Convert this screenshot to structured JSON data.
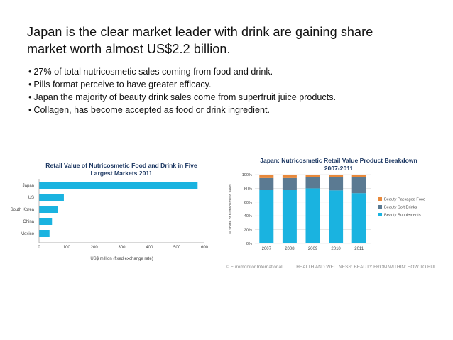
{
  "slide": {
    "title_line1": "Japan is the clear market leader with drink are gaining share",
    "title_line2": "market worth almost US$2.2 billion.",
    "bullets": [
      "27% of total nutricosmetic sales coming from food and drink.",
      "Pills format perceive to have greater efficacy.",
      "Japan the majority of beauty drink sales come from superfruit juice products.",
      "Collagen, has become accepted as food or drink ingredient."
    ]
  },
  "footer": {
    "left": "© Euromonitor International",
    "right": "HEALTH AND WELLNESS: BEAUTY FROM WITHIN: HOW TO BUI"
  },
  "colors": {
    "bar": "#1ab3e0",
    "supplements": "#1ab3e0",
    "soft_drinks": "#5b7a92",
    "packaged_food": "#e8893b",
    "title_text": "#1f3a64"
  },
  "chart_data": [
    {
      "type": "bar",
      "orientation": "horizontal",
      "title": "Retail Value of Nutricosmetic Food and Drink in Five Largest Markets 2011",
      "title_lines": [
        "Retail Value of Nutricosmetic Food and Drink in Five",
        "Largest Markets 2011"
      ],
      "categories": [
        "Japan",
        "US",
        "South Korea",
        "China",
        "Mexico"
      ],
      "values": [
        575,
        90,
        67,
        47,
        38
      ],
      "xlabel": "US$ million (fixed exchange rate)",
      "xlim": [
        0,
        600
      ],
      "xticks": [
        0,
        100,
        200,
        300,
        400,
        500,
        600
      ],
      "grid": false
    },
    {
      "type": "bar",
      "stacked": true,
      "title": "Japan: Nutricosmetic Retail Value Product Breakdown 2007-2011",
      "title_lines": [
        "Japan: Nutricosmetic Retail Value Product Breakdown",
        "2007-2011"
      ],
      "categories": [
        "2007",
        "2008",
        "2009",
        "2010",
        "2011"
      ],
      "ylabel": "% share of nutricosmetic sales",
      "ylim": [
        0,
        100
      ],
      "yticks": [
        "0%",
        "20%",
        "40%",
        "60%",
        "80%",
        "100%"
      ],
      "series": [
        {
          "name": "Beauty Supplements",
          "values": [
            78,
            78,
            80,
            77,
            73
          ]
        },
        {
          "name": "Beauty Soft Drinks",
          "values": [
            17,
            17,
            16,
            19,
            23
          ]
        },
        {
          "name": "Beauty Packaged Food",
          "values": [
            5,
            5,
            4,
            4,
            4
          ]
        }
      ],
      "legend": "right",
      "grid": true
    }
  ]
}
